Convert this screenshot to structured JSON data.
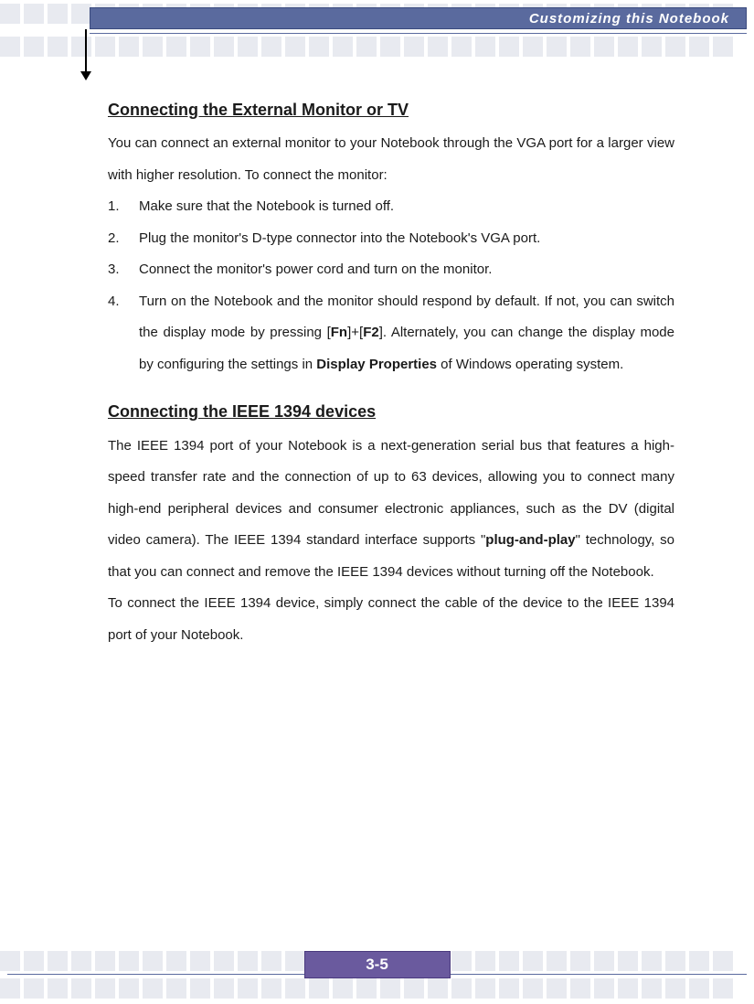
{
  "header": {
    "title": "Customizing this Notebook"
  },
  "page_number": "3-5",
  "colors": {
    "header_bg": "#5a6a9e",
    "footer_bg": "#6a5a9e",
    "deco_square": "#e8eaf0",
    "text": "#1a1a1a",
    "white": "#ffffff"
  },
  "section1": {
    "title": "Connecting the External Monitor or TV",
    "intro": "You can connect an external monitor to your Notebook through the VGA port for a larger view with higher resolution.   To connect the monitor:",
    "steps": [
      {
        "n": "1.",
        "text": "Make sure that the Notebook is turned off."
      },
      {
        "n": "2.",
        "text": "Plug the monitor's D-type connector into the Notebook's VGA port."
      },
      {
        "n": "3.",
        "text": "Connect the monitor's power cord and turn on the monitor."
      },
      {
        "n": "4.",
        "pre": "Turn on the Notebook and the monitor should respond by default.   If not, you can switch the display mode by pressing [",
        "fn": "Fn",
        "mid1": "]+[",
        "f2": "F2",
        "mid2": "].   Alternately, you can change the display mode by configuring the settings in ",
        "dp": "Display Properties",
        "post": " of Windows operating system."
      }
    ]
  },
  "section2": {
    "title": "Connecting the IEEE 1394 devices",
    "p1_pre": "The IEEE 1394 port of your Notebook is a next-generation serial bus that features a high-speed transfer rate and the connection of up to 63 devices, allowing you to connect many high-end peripheral devices and consumer electronic appliances, such as the DV (digital video camera).   The IEEE 1394 standard interface supports \"",
    "p1_bold": "plug-and-play",
    "p1_post": "\" technology, so that you can connect and remove the IEEE 1394 devices without turning off the Notebook.",
    "p2": "To connect the IEEE 1394 device, simply connect the cable of the device to the IEEE 1394 port of your Notebook."
  }
}
